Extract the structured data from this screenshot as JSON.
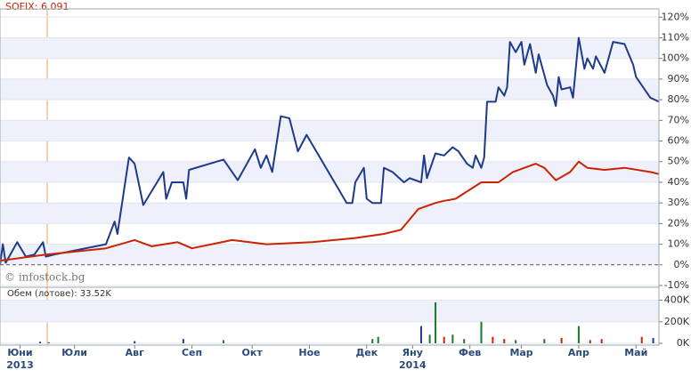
{
  "chart_data": [
    {
      "type": "line",
      "title": "SOFIX: 6.091",
      "watermark": "© infostock.bg",
      "xlim": [
        0,
        230
      ],
      "ylim": [
        -10,
        124
      ],
      "yticks": [
        {
          "value": -10,
          "label": "-10%"
        },
        {
          "value": 0,
          "label": "0%"
        },
        {
          "value": 10,
          "label": "10%"
        },
        {
          "value": 20,
          "label": "20%"
        },
        {
          "value": 30,
          "label": "30%"
        },
        {
          "value": 40,
          "label": "40%"
        },
        {
          "value": 50,
          "label": "50%"
        },
        {
          "value": 60,
          "label": "60%"
        },
        {
          "value": 70,
          "label": "70%"
        },
        {
          "value": 80,
          "label": "80%"
        },
        {
          "value": 90,
          "label": "90%"
        },
        {
          "value": 100,
          "label": "100%"
        },
        {
          "value": 110,
          "label": "110%"
        },
        {
          "value": 120,
          "label": "120%"
        }
      ],
      "grid": true,
      "series": [
        {
          "color": "#1f3a8a",
          "x": [
            0,
            1,
            2,
            6,
            9,
            12,
            15,
            16,
            19,
            37,
            40,
            41,
            45,
            47,
            50,
            57,
            58,
            60,
            64,
            65,
            66,
            78,
            83,
            89,
            91,
            93,
            95,
            98,
            101,
            104,
            107,
            121,
            123,
            124,
            127,
            128,
            130,
            133,
            134,
            137,
            141,
            143,
            147,
            148,
            149,
            152,
            155,
            158,
            160,
            163,
            165,
            166,
            168,
            169,
            170,
            173,
            174,
            176,
            177,
            178,
            180,
            182,
            183,
            185,
            187,
            188,
            189,
            191,
            193,
            194,
            195,
            196,
            199,
            200,
            202,
            204,
            205,
            207,
            208,
            211,
            214,
            218,
            221,
            222,
            227,
            230
          ],
          "values": [
            0,
            10,
            1,
            11,
            4,
            5,
            11,
            4,
            5,
            10,
            21,
            15,
            52,
            49,
            29,
            45,
            32,
            40,
            40,
            32,
            46,
            51,
            41,
            56,
            47,
            53,
            45,
            72,
            71,
            55,
            63,
            30,
            30,
            40,
            47,
            32,
            30,
            30,
            47,
            45,
            40,
            42,
            40,
            53,
            42,
            54,
            53,
            57,
            55,
            49,
            47,
            53,
            47,
            52,
            79,
            79,
            86,
            82,
            86,
            108,
            103,
            108,
            97,
            107,
            93,
            102,
            97,
            87,
            82,
            77,
            91,
            85,
            86,
            81,
            110,
            95,
            100,
            95,
            101,
            93,
            108,
            107,
            97,
            91,
            81,
            79
          ]
        },
        {
          "color": "#cc2200",
          "x": [
            0,
            16,
            37,
            47,
            53,
            62,
            67,
            81,
            93,
            109,
            124,
            134,
            140,
            146,
            152,
            155,
            159,
            168,
            174,
            179,
            187,
            190,
            194,
            199,
            202,
            205,
            211,
            218,
            227,
            230
          ],
          "values": [
            2,
            5,
            8,
            12,
            9,
            11,
            8,
            12,
            10,
            11,
            13,
            15,
            17,
            27,
            30,
            31,
            32,
            40,
            40,
            45,
            49,
            47,
            41,
            45,
            50,
            47,
            46,
            47,
            45,
            44
          ]
        }
      ]
    },
    {
      "type": "bar",
      "title": "Обем (лотове): 33.52K",
      "xlim": [
        0,
        230
      ],
      "ylim": [
        0,
        520000
      ],
      "yticks": [
        {
          "value": 0,
          "label": "0K"
        },
        {
          "value": 200000,
          "label": "200K"
        },
        {
          "value": 400000,
          "label": "400K"
        }
      ],
      "grid": true,
      "xticks": [
        {
          "value": 7,
          "label": "Юни"
        },
        {
          "value": 26,
          "label": "Юли"
        },
        {
          "value": 47,
          "label": "Авг"
        },
        {
          "value": 67,
          "label": "Сеп"
        },
        {
          "value": 88,
          "label": "Окт"
        },
        {
          "value": 108,
          "label": "Ное"
        },
        {
          "value": 128,
          "label": "Дек"
        },
        {
          "value": 144,
          "label": "Яну"
        },
        {
          "value": 164,
          "label": "Фев"
        },
        {
          "value": 182,
          "label": "Мар"
        },
        {
          "value": 202,
          "label": "Апр"
        },
        {
          "value": 222,
          "label": "Май"
        }
      ],
      "year_labels": [
        {
          "value": 7,
          "label": "2013"
        },
        {
          "value": 144,
          "label": "2014"
        }
      ],
      "x": [
        14,
        17,
        47,
        64,
        78,
        130,
        132,
        147,
        150,
        152,
        155,
        158,
        162,
        168,
        172,
        176,
        180,
        190,
        196,
        202,
        206,
        210,
        224,
        228
      ],
      "values": [
        15000,
        10000,
        20000,
        40000,
        30000,
        40000,
        60000,
        160000,
        80000,
        380000,
        60000,
        80000,
        40000,
        200000,
        60000,
        40000,
        30000,
        40000,
        50000,
        160000,
        30000,
        40000,
        60000,
        50000
      ],
      "colors": [
        "#1f3a8a",
        "#1f3a8a",
        "#1f3a8a",
        "#1f3a8a",
        "#1a7a2a",
        "#1a7a2a",
        "#1a7a2a",
        "#1f3a8a",
        "#1a7a2a",
        "#1a7a2a",
        "#cc2200",
        "#1a7a2a",
        "#1a7a2a",
        "#1a7a2a",
        "#cc2200",
        "#cc2200",
        "#1a7a2a",
        "#1a7a2a",
        "#cc2200",
        "#1a7a2a",
        "#cc2200",
        "#cc2200",
        "#cc2200",
        "#1f3a8a"
      ]
    }
  ]
}
